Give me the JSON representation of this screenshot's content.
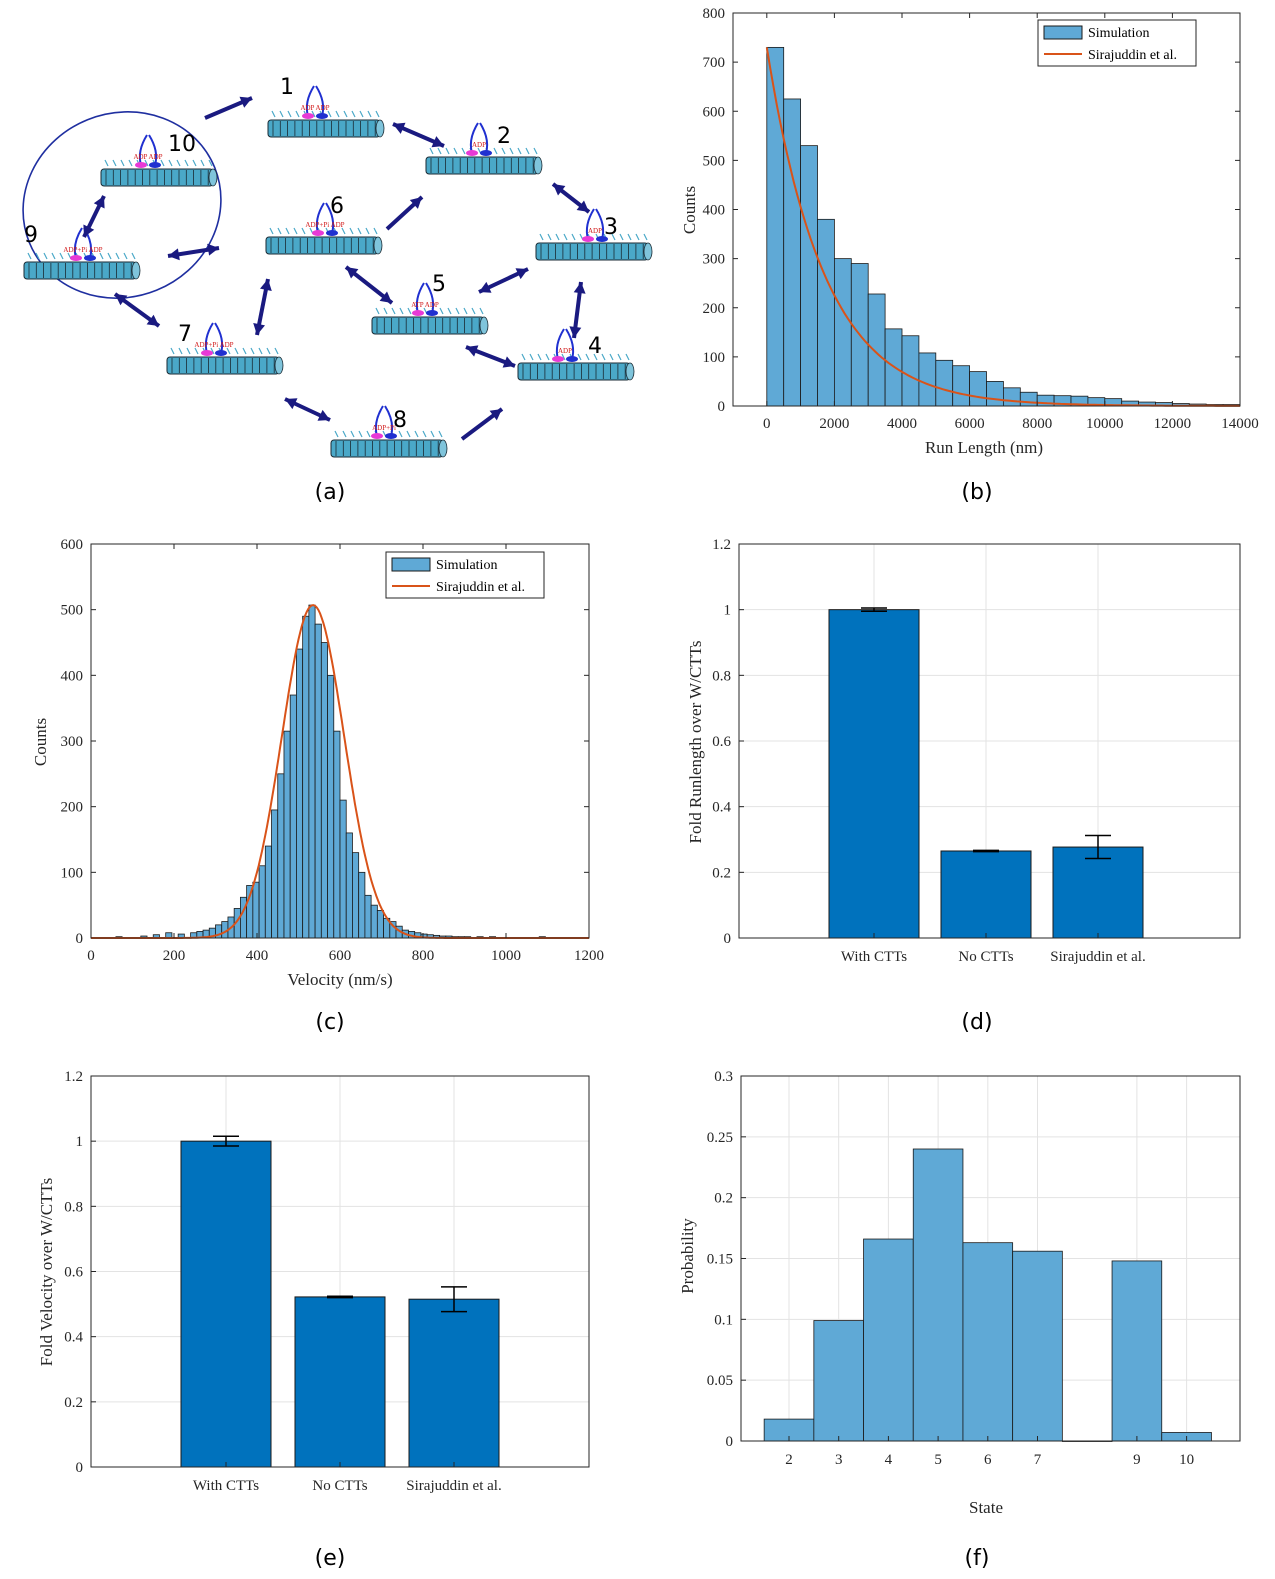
{
  "panels": {
    "a": {
      "caption": "(a)",
      "states": [
        {
          "id": "1",
          "ligand": "ADP ADP"
        },
        {
          "id": "2",
          "ligand": "ADP"
        },
        {
          "id": "3",
          "ligand": "ADP"
        },
        {
          "id": "4",
          "ligand": "ADP"
        },
        {
          "id": "5",
          "ligand": "ATP ADP"
        },
        {
          "id": "6",
          "ligand": "ADP+Pi ADP"
        },
        {
          "id": "7",
          "ligand": "ADP+Pi ADP"
        },
        {
          "id": "8",
          "ligand": "ADP+Pi"
        },
        {
          "id": "9",
          "ligand": "ADP+Pi ADP"
        },
        {
          "id": "10",
          "ligand": "ADP ADP"
        }
      ],
      "colors": {
        "arrow": "#1a1a80",
        "microtubule": "#4aa8c8",
        "oval": "#1f2fa0",
        "head_pink": "#e83ad6",
        "head_blue": "#2030d0",
        "ligand": "#d01818"
      }
    },
    "b": {
      "caption": "(b)",
      "chart_data": {
        "type": "bar",
        "xlabel": "Run Length (nm)",
        "ylabel": "Counts",
        "xlim": [
          -1000,
          14000
        ],
        "ylim": [
          0,
          800
        ],
        "xticks": [
          "0",
          "2000",
          "4000",
          "6000",
          "8000",
          "10000",
          "12000",
          "14000"
        ],
        "yticks": [
          "0",
          "100",
          "200",
          "300",
          "400",
          "500",
          "600",
          "700",
          "800"
        ],
        "bin_width": 500,
        "bin_start": 0,
        "values": [
          730,
          625,
          530,
          380,
          300,
          290,
          228,
          157,
          143,
          108,
          93,
          82,
          70,
          50,
          37,
          28,
          22,
          21,
          20,
          17,
          15,
          10,
          8,
          7,
          5,
          4,
          3,
          3
        ],
        "fit": {
          "name": "Sirajuddin et al.",
          "type": "exponential",
          "a": 730,
          "decay_length": 1700
        },
        "legend": [
          "Simulation",
          "Sirajuddin et al."
        ],
        "legend_position": "top-right",
        "grid": false
      }
    },
    "c": {
      "caption": "(c)",
      "chart_data": {
        "type": "bar",
        "xlabel": "Velocity (nm/s)",
        "ylabel": "Counts",
        "xlim": [
          0,
          1200
        ],
        "ylim": [
          0,
          600
        ],
        "xticks": [
          "0",
          "200",
          "400",
          "600",
          "800",
          "1000",
          "1200"
        ],
        "yticks": [
          "0",
          "100",
          "200",
          "300",
          "400",
          "500",
          "600"
        ],
        "bin_width": 15,
        "bins": [
          [
            60,
            2
          ],
          [
            120,
            3
          ],
          [
            150,
            5
          ],
          [
            180,
            8
          ],
          [
            210,
            6
          ],
          [
            240,
            8
          ],
          [
            255,
            10
          ],
          [
            270,
            12
          ],
          [
            285,
            15
          ],
          [
            300,
            20
          ],
          [
            315,
            25
          ],
          [
            330,
            32
          ],
          [
            345,
            45
          ],
          [
            360,
            62
          ],
          [
            375,
            80
          ],
          [
            390,
            85
          ],
          [
            405,
            110
          ],
          [
            420,
            140
          ],
          [
            435,
            195
          ],
          [
            450,
            250
          ],
          [
            465,
            315
          ],
          [
            480,
            370
          ],
          [
            495,
            440
          ],
          [
            510,
            490
          ],
          [
            525,
            507
          ],
          [
            540,
            478
          ],
          [
            555,
            450
          ],
          [
            570,
            400
          ],
          [
            585,
            315
          ],
          [
            600,
            210
          ],
          [
            615,
            160
          ],
          [
            630,
            130
          ],
          [
            645,
            100
          ],
          [
            660,
            65
          ],
          [
            675,
            50
          ],
          [
            690,
            42
          ],
          [
            705,
            30
          ],
          [
            720,
            25
          ],
          [
            735,
            18
          ],
          [
            750,
            12
          ],
          [
            765,
            10
          ],
          [
            780,
            8
          ],
          [
            795,
            6
          ],
          [
            810,
            5
          ],
          [
            825,
            4
          ],
          [
            840,
            3
          ],
          [
            855,
            3
          ],
          [
            870,
            2
          ],
          [
            885,
            2
          ],
          [
            900,
            2
          ],
          [
            930,
            2
          ],
          [
            960,
            2
          ],
          [
            1080,
            2
          ]
        ],
        "fit": {
          "name": "Sirajuddin et al.",
          "type": "gaussian",
          "amplitude": 507,
          "mean": 535,
          "sd": 75
        },
        "legend": [
          "Simulation",
          "Sirajuddin et al."
        ],
        "legend_position": "top-right",
        "grid": false
      }
    },
    "d": {
      "caption": "(d)",
      "chart_data": {
        "type": "bar",
        "categories": [
          "With CTTs",
          "No CTTs",
          "Sirajuddin et al."
        ],
        "values": [
          1.0,
          0.265,
          0.277
        ],
        "errors": [
          0.005,
          0.002,
          0.035
        ],
        "ylabel": "Fold Runlength over W/CTTs",
        "ylim": [
          0,
          1.2
        ],
        "yticks": [
          "0",
          "0.2",
          "0.4",
          "0.6",
          "0.8",
          "1",
          "1.2"
        ],
        "grid": true
      }
    },
    "e": {
      "caption": "(e)",
      "chart_data": {
        "type": "bar",
        "categories": [
          "With CTTs",
          "No CTTs",
          "Sirajuddin et al."
        ],
        "values": [
          1.0,
          0.522,
          0.515
        ],
        "errors": [
          0.015,
          0.002,
          0.038
        ],
        "ylabel": "Fold Velocity over W/CTTs",
        "ylim": [
          0,
          1.2
        ],
        "yticks": [
          "0",
          "0.2",
          "0.4",
          "0.6",
          "0.8",
          "1",
          "1.2"
        ],
        "grid": true
      }
    },
    "f": {
      "caption": "(f)",
      "chart_data": {
        "type": "bar",
        "x": [
          2,
          3,
          4,
          5,
          6,
          7,
          8,
          9,
          10
        ],
        "values": [
          0.018,
          0.099,
          0.166,
          0.24,
          0.163,
          0.156,
          0.0,
          0.148,
          0.007
        ],
        "xticks": [
          "2",
          "3",
          "4",
          "5",
          "6",
          "7",
          "9",
          "10"
        ],
        "xlabel": "State",
        "ylabel": "Probability",
        "ylim": [
          0,
          0.3
        ],
        "yticks": [
          "0",
          "0.05",
          "0.1",
          "0.15",
          "0.2",
          "0.25",
          "0.3"
        ],
        "grid": true
      }
    }
  }
}
